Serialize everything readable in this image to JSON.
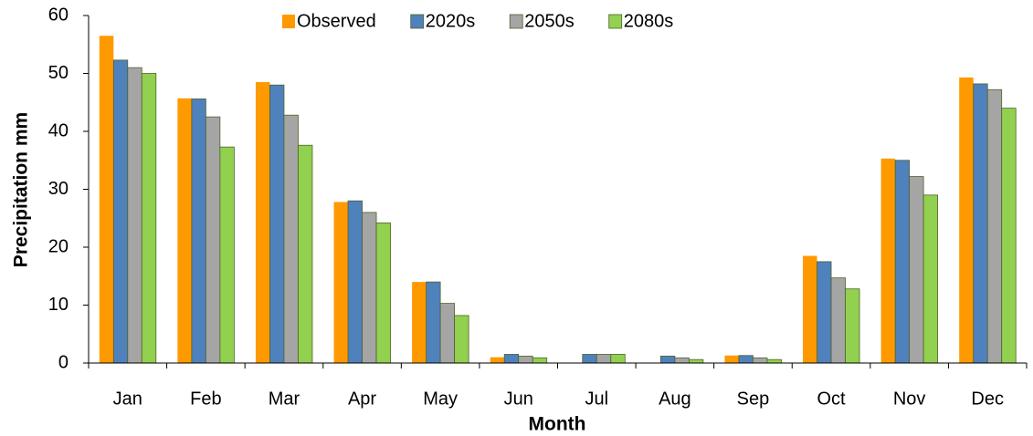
{
  "chart_data": {
    "type": "bar",
    "x_label": "Month",
    "y_label": "Precipitation mm",
    "categories": [
      "Jan",
      "Feb",
      "Mar",
      "Apr",
      "May",
      "Jun",
      "Jul",
      "Aug",
      "Sep",
      "Oct",
      "Nov",
      "Dec"
    ],
    "series": [
      {
        "name": "Observed",
        "color": "#ff9900",
        "values": [
          56.5,
          45.7,
          48.5,
          27.8,
          14,
          1,
          0,
          0,
          1.3,
          18.5,
          35.3,
          49.3
        ]
      },
      {
        "name": "2020s",
        "color": "#4f81bd",
        "values": [
          52.3,
          45.6,
          48,
          28,
          14,
          1.5,
          1.5,
          1.2,
          1.3,
          17.5,
          35,
          48.2
        ]
      },
      {
        "name": "2050s",
        "color": "#a5a5a5",
        "values": [
          51,
          42.5,
          42.8,
          26,
          10.3,
          1.2,
          1.5,
          0.9,
          0.9,
          14.7,
          32.2,
          47.2
        ]
      },
      {
        "name": "2080s",
        "color": "#92d050",
        "values": [
          50,
          37.3,
          37.6,
          24.2,
          8.2,
          0.9,
          1.5,
          0.6,
          0.6,
          12.8,
          29,
          44
        ]
      }
    ],
    "ylim": [
      0,
      60
    ],
    "yticks": [
      0,
      10,
      20,
      30,
      40,
      50,
      60
    ],
    "grid": false,
    "legend": "top"
  }
}
